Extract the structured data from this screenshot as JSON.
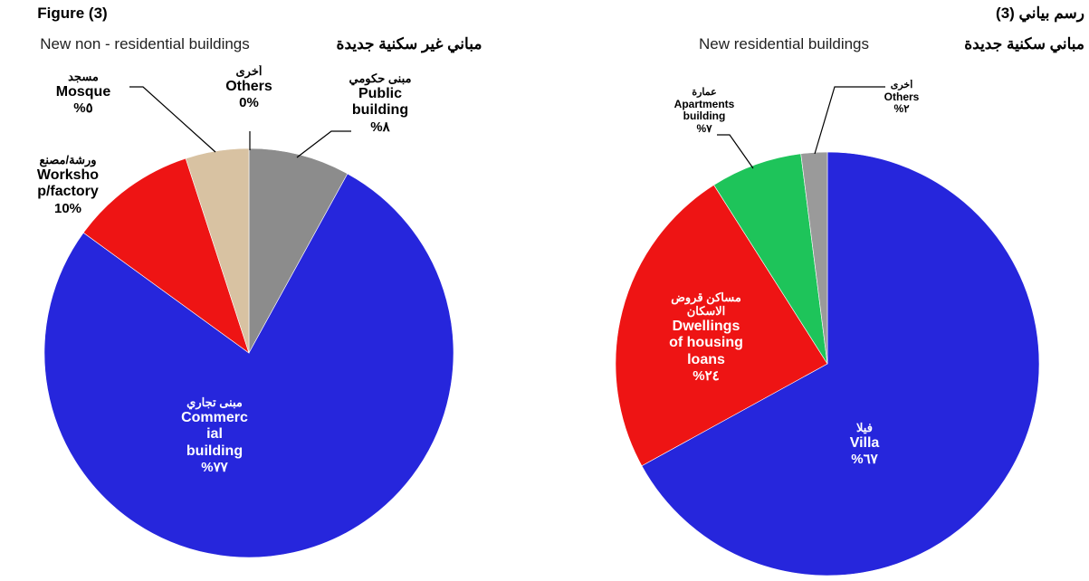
{
  "figure_label": "Figure (3)",
  "figure_label_ar": "رسم بياني (3)",
  "chart_data": [
    {
      "type": "pie",
      "title": "New non - residential buildings",
      "title_ar": "مباني غير سكنية جديدة",
      "categories": [
        "Others",
        "Public\nbuilding",
        "Commerc\nial\nbuilding",
        "Worksho\np/factory",
        "Mosque"
      ],
      "categories_ar": [
        "أخرى",
        "مبنى حكومي",
        "مبنى تجاري",
        "ورشة/مصنع",
        "مسجد"
      ],
      "values": [
        0,
        8,
        77,
        10,
        5
      ],
      "value_labels": [
        "0%",
        "%٨",
        "%٧٧",
        "10%",
        "%٥"
      ],
      "colors": [
        "#b0b0b0",
        "#8c8c8c",
        "#2626dc",
        "#ee1414",
        "#d8c2a2"
      ]
    },
    {
      "type": "pie",
      "title": "New residential buildings",
      "title_ar": "مباني سكنية جديدة",
      "categories": [
        "Villa",
        "Dwellings\nof housing\nloans",
        "Apartments\nbuilding",
        "Others"
      ],
      "categories_ar": [
        "فيلا",
        "مساكن قروض\nالاسكان",
        "عمارة",
        "أخرى"
      ],
      "values": [
        67,
        24,
        7,
        2
      ],
      "value_labels": [
        "%٦٧",
        "%٢٤",
        "%٧",
        "%٢"
      ],
      "colors": [
        "#2626dc",
        "#ee1414",
        "#1ec45a",
        "#9a9a9a"
      ]
    }
  ]
}
